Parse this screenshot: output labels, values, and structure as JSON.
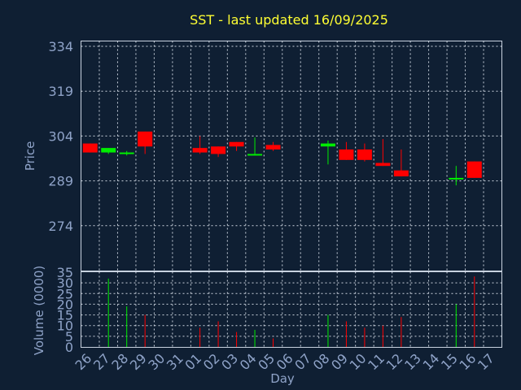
{
  "title": "SST - last updated 16/09/2025",
  "chart_data": {
    "type": "candlestick",
    "title": "SST - last updated 16/09/2025",
    "xlabel": "Day",
    "price_panel": {
      "ylabel": "Price",
      "ylim": [
        259,
        334
      ],
      "yticks": [
        334,
        319,
        304,
        289,
        274
      ]
    },
    "volume_panel": {
      "ylabel": "Volume (0000)",
      "ylim": [
        0,
        35
      ],
      "yticks": [
        35,
        30,
        25,
        20,
        15,
        10,
        5,
        0
      ]
    },
    "x_tick_labels": [
      "26",
      "27",
      "28",
      "29",
      "30",
      "31",
      "01",
      "02",
      "03",
      "04",
      "05",
      "06",
      "07",
      "08",
      "09",
      "10",
      "11",
      "12",
      "13",
      "14",
      "15",
      "16",
      "17"
    ],
    "grid": true,
    "up_color": "#00ee00",
    "down_color": "#ff0000",
    "candles": [
      {
        "day": "26",
        "open": 301.5,
        "close": 298.5,
        "high": 301.5,
        "low": 298.5,
        "volume": 0
      },
      {
        "day": "27",
        "open": 298.5,
        "close": 300.0,
        "high": 300.0,
        "low": 298.0,
        "volume": 32
      },
      {
        "day": "28",
        "open": 298.0,
        "close": 298.5,
        "high": 299.0,
        "low": 297.5,
        "volume": 19
      },
      {
        "day": "29",
        "open": 305.5,
        "close": 300.5,
        "high": 305.5,
        "low": 298.0,
        "volume": 15
      },
      {
        "day": "01",
        "open": 300.0,
        "close": 298.5,
        "high": 304.0,
        "low": 298.0,
        "volume": 9
      },
      {
        "day": "02",
        "open": 300.5,
        "close": 298.0,
        "high": 300.5,
        "low": 297.0,
        "volume": 12
      },
      {
        "day": "03",
        "open": 302.0,
        "close": 300.5,
        "high": 302.0,
        "low": 299.0,
        "volume": 7
      },
      {
        "day": "04",
        "open": 297.5,
        "close": 298.0,
        "high": 303.5,
        "low": 297.5,
        "volume": 8
      },
      {
        "day": "05",
        "open": 301.0,
        "close": 299.5,
        "high": 302.0,
        "low": 299.0,
        "volume": 4
      },
      {
        "day": "08",
        "open": 300.5,
        "close": 301.5,
        "high": 302.5,
        "low": 294.5,
        "volume": 15
      },
      {
        "day": "09",
        "open": 299.5,
        "close": 296.0,
        "high": 302.0,
        "low": 296.0,
        "volume": 12
      },
      {
        "day": "10",
        "open": 299.5,
        "close": 296.0,
        "high": 301.5,
        "low": 295.5,
        "volume": 9
      },
      {
        "day": "11",
        "open": 295.0,
        "close": 294.0,
        "high": 303.0,
        "low": 294.0,
        "volume": 10
      },
      {
        "day": "12",
        "open": 292.5,
        "close": 290.5,
        "high": 299.5,
        "low": 290.5,
        "volume": 14
      },
      {
        "day": "15",
        "open": 289.5,
        "close": 290.0,
        "high": 294.0,
        "low": 287.5,
        "volume": 20
      },
      {
        "day": "16",
        "open": 295.5,
        "close": 290.0,
        "high": 295.5,
        "low": 290.0,
        "volume": 33
      }
    ]
  }
}
